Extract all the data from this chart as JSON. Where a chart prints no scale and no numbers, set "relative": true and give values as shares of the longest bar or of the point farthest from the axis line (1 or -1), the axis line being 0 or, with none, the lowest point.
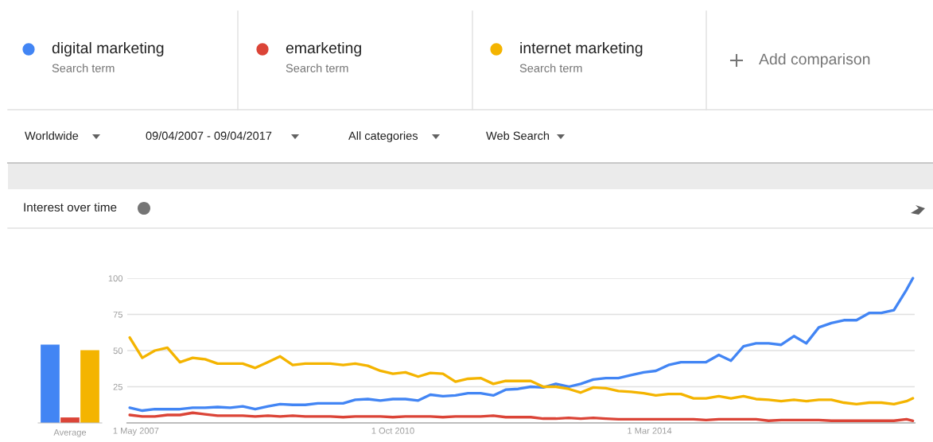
{
  "chart_data": [
    {
      "type": "line",
      "title": "Interest over time",
      "legend": "top",
      "grid": "y",
      "annotations": [
        "Search term",
        "Search term",
        "Search term",
        "Add comparison",
        "Worldwide",
        "09/04/2007 - 09/04/2017",
        "All categories",
        "Web Search"
      ],
      "x": [
        "2007-04",
        "2007-06",
        "2007-08",
        "2007-10",
        "2007-12",
        "2008-02",
        "2008-04",
        "2008-06",
        "2008-08",
        "2008-10",
        "2008-12",
        "2009-02",
        "2009-04",
        "2009-06",
        "2009-08",
        "2009-10",
        "2009-12",
        "2010-02",
        "2010-04",
        "2010-06",
        "2010-08",
        "2010-10",
        "2010-12",
        "2011-02",
        "2011-04",
        "2011-06",
        "2011-08",
        "2011-10",
        "2011-12",
        "2012-02",
        "2012-04",
        "2012-06",
        "2012-08",
        "2012-10",
        "2012-12",
        "2013-02",
        "2013-04",
        "2013-06",
        "2013-08",
        "2013-10",
        "2013-12",
        "2014-02",
        "2014-04",
        "2014-06",
        "2014-08",
        "2014-10",
        "2014-12",
        "2015-02",
        "2015-04",
        "2015-06",
        "2015-08",
        "2015-10",
        "2015-12",
        "2016-02",
        "2016-04",
        "2016-06",
        "2016-08",
        "2016-10",
        "2016-12",
        "2017-02",
        "2017-04",
        "2017-06",
        "2017-08",
        "2017-09"
      ],
      "xlim": [
        "2007-03-20",
        "2017-09-10"
      ],
      "xticks": [
        {
          "value": "2007-05-01",
          "label": "1 May 2007"
        },
        {
          "value": "2010-10-01",
          "label": "1 Oct 2010"
        },
        {
          "value": "2014-03-01",
          "label": "1 Mar 2014"
        }
      ],
      "ylim": [
        0,
        100
      ],
      "yticks": [
        25,
        50,
        75,
        100
      ],
      "series": [
        {
          "name": "digital marketing",
          "color": "#4285f4",
          "values": [
            10.5,
            8.5,
            9.5,
            9.5,
            9.5,
            10.5,
            10.5,
            11,
            10.5,
            11.5,
            9.5,
            11.5,
            13,
            12.5,
            12.5,
            13.5,
            13.5,
            13.5,
            16,
            16.5,
            15.5,
            16.5,
            16.5,
            15.5,
            19.5,
            18.5,
            19,
            20.5,
            20.5,
            19,
            23,
            23.5,
            25,
            24.5,
            27,
            25,
            27,
            30,
            31,
            31,
            33,
            35,
            36,
            40,
            42,
            42,
            42,
            47,
            43,
            53,
            55,
            55,
            54,
            60,
            55,
            66,
            69,
            71,
            71,
            76,
            76,
            78,
            92,
            100
          ]
        },
        {
          "name": "emarketing",
          "color": "#db4437",
          "values": [
            5.5,
            4.5,
            4.5,
            5.5,
            5.5,
            7,
            6,
            5,
            5,
            5,
            4.5,
            5,
            4.5,
            5,
            4.5,
            4.5,
            4.5,
            4,
            4.5,
            4.5,
            4.5,
            4,
            4.5,
            4.5,
            4.5,
            4,
            4.5,
            4.5,
            4.5,
            5,
            4,
            4,
            4,
            3,
            3,
            3.5,
            3,
            3.5,
            3,
            2.5,
            2.5,
            2.5,
            2.5,
            2.5,
            2.5,
            2.5,
            2,
            2.5,
            2.5,
            2.5,
            2.5,
            1.5,
            2,
            2,
            2,
            2,
            1.5,
            1.5,
            1.5,
            1.5,
            1.5,
            1.5,
            2.5,
            1.5
          ]
        },
        {
          "name": "internet marketing",
          "color": "#f4b400",
          "values": [
            59,
            45,
            50,
            52,
            42,
            45,
            44,
            41,
            41,
            41,
            38,
            42,
            46,
            40,
            41,
            41,
            41,
            40,
            41,
            39.5,
            36,
            34,
            35,
            32,
            34.5,
            34,
            28.5,
            30.5,
            31,
            27,
            29,
            29,
            29,
            25,
            25,
            23.5,
            21,
            24.5,
            24,
            22,
            21.5,
            20.5,
            19,
            20,
            20,
            17,
            17,
            18.5,
            17,
            18.5,
            16.5,
            16,
            15,
            16,
            15,
            16,
            16,
            14,
            13,
            14,
            14,
            13,
            15,
            17
          ]
        }
      ]
    },
    {
      "type": "bar",
      "relative": true,
      "xlabel": "Average",
      "categories": [
        null,
        null,
        null
      ],
      "values": [
        1,
        0.07,
        0.93
      ],
      "colors": [
        "#4285f4",
        "#db4437",
        "#f4b400"
      ]
    }
  ]
}
